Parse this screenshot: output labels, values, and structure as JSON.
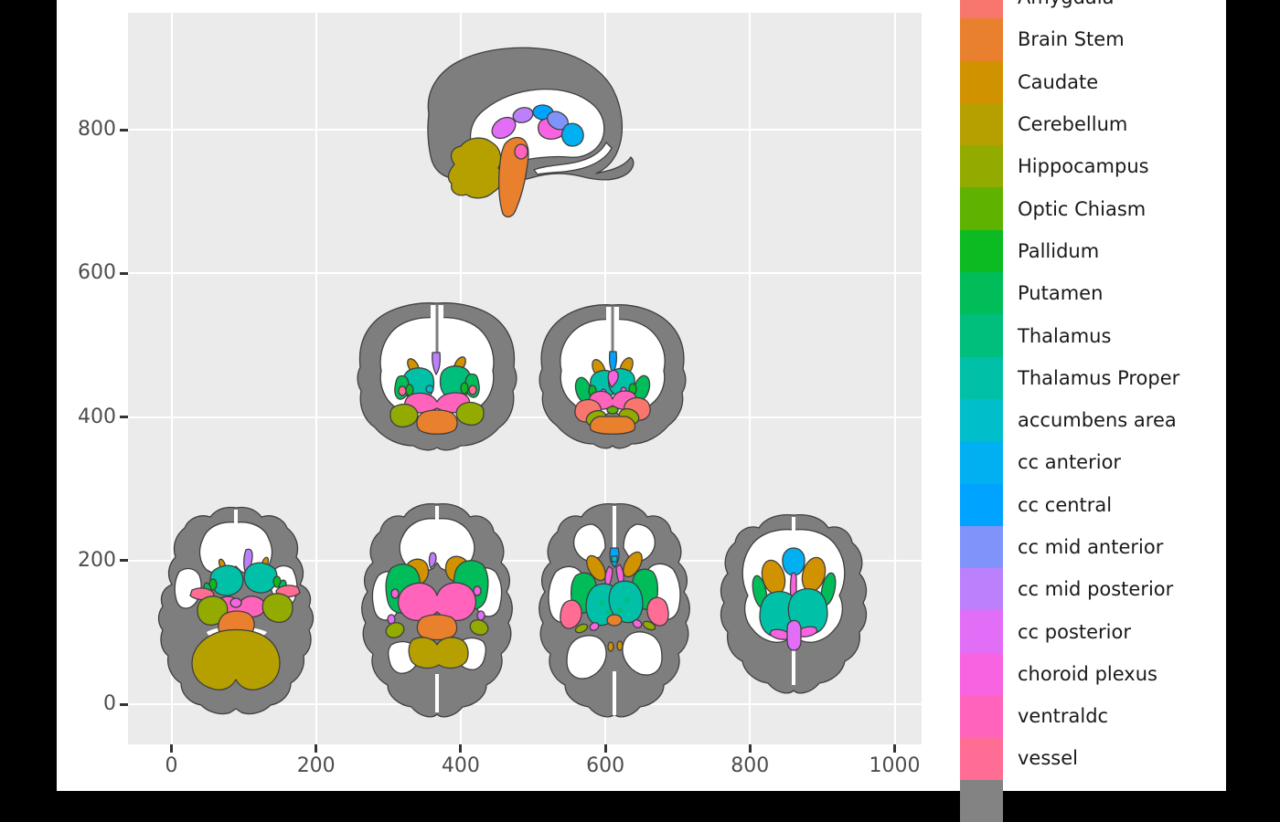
{
  "figure": {
    "kind": "ggplot-style brain segmentation plot",
    "background": "#FFFFFF",
    "letterbox_color": "#000000"
  },
  "palette": {
    "cortex": "#7E7E7E",
    "inner": "#FFFFFF",
    "panel": "#EBEBEB",
    "grid": "#FFFFFF",
    "axis_text": "#4D4D4D",
    "tick": "#333333",
    "legend_text": "#1A1A1A",
    "outline": "#3F3F3F"
  },
  "axes": {
    "x": {
      "ticks": [
        0,
        200,
        400,
        600,
        800,
        1000
      ]
    },
    "y": {
      "ticks": [
        0,
        200,
        400,
        600,
        800
      ]
    }
  },
  "legend": {
    "entries": [
      {
        "label": "Amygdala",
        "color": "#F8766D"
      },
      {
        "label": "Brain Stem",
        "color": "#E8802E"
      },
      {
        "label": "Caudate",
        "color": "#D19200"
      },
      {
        "label": "Cerebellum",
        "color": "#B5A000"
      },
      {
        "label": "Hippocampus",
        "color": "#93AA00"
      },
      {
        "label": "Optic Chiasm",
        "color": "#5FB300"
      },
      {
        "label": "Pallidum",
        "color": "#0BBB21"
      },
      {
        "label": "Putamen",
        "color": "#00BC59"
      },
      {
        "label": "Thalamus",
        "color": "#00BF7D"
      },
      {
        "label": "Thalamus Proper",
        "color": "#00C1A8"
      },
      {
        "label": "accumbens area",
        "color": "#00BFCB"
      },
      {
        "label": "cc anterior",
        "color": "#00B0F0"
      },
      {
        "label": "cc central",
        "color": "#00A3FF"
      },
      {
        "label": "cc mid anterior",
        "color": "#8093FA"
      },
      {
        "label": "cc mid posterior",
        "color": "#BD80FC"
      },
      {
        "label": "cc posterior",
        "color": "#E26EF7"
      },
      {
        "label": "choroid plexus",
        "color": "#F763E0"
      },
      {
        "label": "ventraldc",
        "color": "#FF63BC"
      },
      {
        "label": "vessel",
        "color": "#FF6D94"
      },
      {
        "label": "",
        "color": "#838383"
      }
    ]
  },
  "chart_data": {
    "type": "segmentation-map (geom_polygon brain slices)",
    "title": "",
    "xlabel": "",
    "ylabel": "",
    "xlim": [
      -60,
      1037
    ],
    "ylim": [
      -56,
      963
    ],
    "x_ticks": [
      0,
      200,
      400,
      600,
      800,
      1000
    ],
    "y_ticks": [
      0,
      200,
      400,
      600,
      800
    ],
    "grid": "major white gridlines on grey panel",
    "legend_position": "right",
    "categories": [
      "Amygdala",
      "Brain Stem",
      "Caudate",
      "Cerebellum",
      "Hippocampus",
      "Optic Chiasm",
      "Pallidum",
      "Putamen",
      "Thalamus",
      "Thalamus Proper",
      "accumbens area",
      "cc anterior",
      "cc central",
      "cc mid anterior",
      "cc mid posterior",
      "cc posterior",
      "choroid plexus",
      "ventraldc",
      "vessel"
    ],
    "slices": [
      {
        "view": "sagittal-midline",
        "center_x": 490,
        "center_y": 790,
        "structures": [
          "cc posterior",
          "cc mid posterior",
          "cc central",
          "cc mid anterior",
          "cc anterior",
          "choroid plexus",
          "ventraldc",
          "Cerebellum",
          "Brain Stem"
        ]
      },
      {
        "view": "coronal-anterior",
        "center_x": 367,
        "center_y": 455,
        "structures": [
          "cc mid posterior",
          "Caudate",
          "Thalamus Proper",
          "Thalamus",
          "Putamen",
          "Pallidum",
          "vessel",
          "accumbens area",
          "ventraldc",
          "Hippocampus",
          "Brain Stem"
        ]
      },
      {
        "view": "coronal-posterior",
        "center_x": 610,
        "center_y": 455,
        "structures": [
          "cc central",
          "accumbens area",
          "Caudate",
          "Thalamus Proper",
          "Putamen",
          "Pallidum",
          "choroid plexus",
          "ventraldc",
          "Amygdala",
          "Hippocampus",
          "Optic Chiasm",
          "Brain Stem"
        ]
      },
      {
        "view": "axial-inferior-1",
        "center_x": 89,
        "center_y": 128,
        "structures": [
          "cc mid posterior",
          "Caudate",
          "Thalamus Proper",
          "Pallidum",
          "Putamen",
          "vessel",
          "choroid plexus",
          "ventraldc",
          "Hippocampus",
          "Brain Stem",
          "Cerebellum"
        ]
      },
      {
        "view": "axial-inferior-2",
        "center_x": 367,
        "center_y": 125,
        "structures": [
          "cc mid posterior",
          "Caudate",
          "accumbens area",
          "Putamen",
          "choroid plexus",
          "ventraldc",
          "cc posterior",
          "Hippocampus",
          "Brain Stem",
          "Cerebellum"
        ]
      },
      {
        "view": "axial-mid",
        "center_x": 613,
        "center_y": 127,
        "structures": [
          "cc central",
          "accumbens area",
          "choroid plexus",
          "Caudate",
          "Putamen",
          "Thalamus Proper",
          "Thalamus",
          "vessel",
          "Hippocampus",
          "Brain Stem"
        ]
      },
      {
        "view": "axial-superior",
        "center_x": 861,
        "center_y": 140,
        "structures": [
          "cc anterior",
          "choroid plexus",
          "Caudate",
          "Putamen",
          "Thalamus Proper",
          "cc posterior"
        ]
      }
    ]
  }
}
